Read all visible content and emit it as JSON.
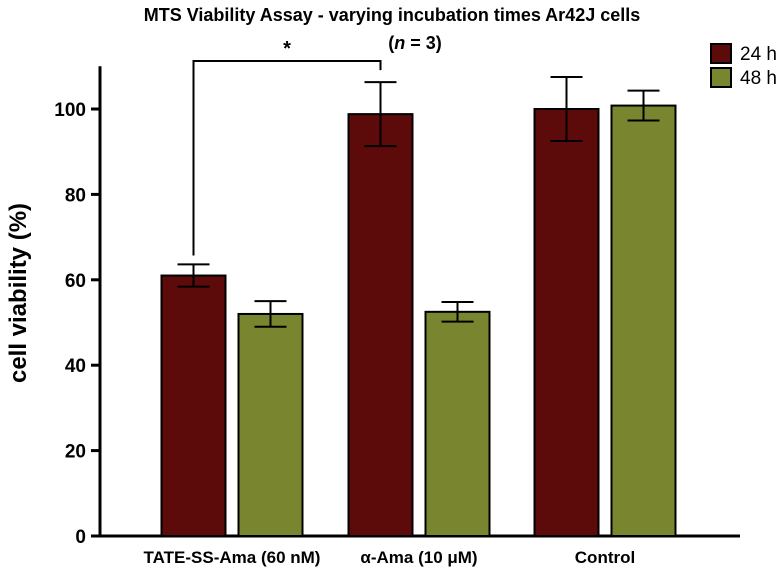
{
  "chart_data": {
    "type": "bar",
    "title": "MTS Viability Assay - varying incubation times Ar42J cells",
    "subtitle_prefix": "(",
    "subtitle_var": "n",
    "subtitle_suffix": " = 3)",
    "xlabel": "",
    "ylabel": "cell viability (%)",
    "ylim": [
      0,
      110
    ],
    "yticks": [
      0,
      20,
      40,
      60,
      80,
      100
    ],
    "grid": false,
    "legend_position": "top-right",
    "categories": [
      "TATE-SS-Ama (60 nM)",
      "α-Ama  (10 μM)",
      "Control"
    ],
    "series": [
      {
        "name": "24 h",
        "color": "#5c0a0a",
        "values": [
          61,
          98.8,
          100
        ],
        "errors": [
          2.6,
          7.5,
          7.5
        ]
      },
      {
        "name": "48 h",
        "color": "#7a8530",
        "values": [
          52,
          52.5,
          100.8
        ],
        "errors": [
          3,
          2.3,
          3.5
        ]
      }
    ],
    "annotations": [
      {
        "type": "significance",
        "label": "*",
        "from": "TATE-SS-Ama (60 nM) / 24 h",
        "to": "α-Ama  (10 μM) / 24 h"
      }
    ]
  }
}
